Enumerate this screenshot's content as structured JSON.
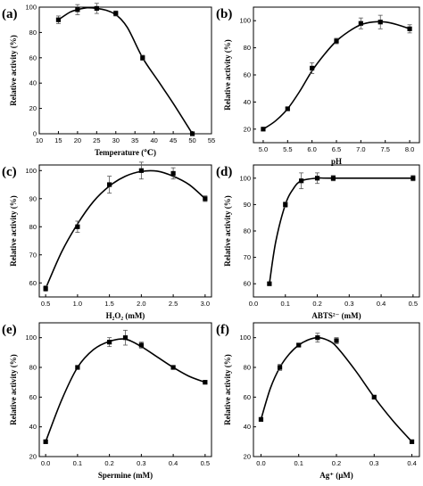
{
  "chart_data": [
    {
      "type": "line",
      "panel_label": "(a)",
      "xlabel": "Temperature (℃)",
      "ylabel": "Relative activity (%)",
      "xlim": [
        10,
        55
      ],
      "ylim": [
        0,
        100
      ],
      "xticks": [
        10,
        15,
        20,
        25,
        30,
        35,
        40,
        45,
        50,
        55
      ],
      "yticks": [
        0,
        20,
        40,
        60,
        80,
        100
      ],
      "x": [
        15,
        20,
        25,
        30,
        37,
        50
      ],
      "y": [
        90,
        98,
        99,
        95,
        60,
        0
      ],
      "err": [
        3,
        4,
        4,
        2,
        2,
        1
      ],
      "curve": [
        [
          15,
          90
        ],
        [
          18,
          96
        ],
        [
          20,
          98
        ],
        [
          22.5,
          99.5
        ],
        [
          25,
          99
        ],
        [
          27.5,
          97.5
        ],
        [
          30,
          94
        ],
        [
          33,
          84
        ],
        [
          37,
          60
        ],
        [
          41,
          42
        ],
        [
          45,
          24
        ],
        [
          50,
          0
        ]
      ]
    },
    {
      "type": "line",
      "panel_label": "(b)",
      "xlabel": "pH",
      "ylabel": "Relative activity (%)",
      "xlim": [
        4.8,
        8.2
      ],
      "ylim": [
        10,
        110
      ],
      "xticks": [
        5.0,
        5.5,
        6.0,
        6.5,
        7.0,
        7.5,
        8.0
      ],
      "yticks": [
        20,
        40,
        60,
        80,
        100
      ],
      "x": [
        5.0,
        5.5,
        6.0,
        6.5,
        7.0,
        7.4,
        8.0
      ],
      "y": [
        20,
        35,
        65,
        85,
        98,
        99,
        94
      ],
      "err": [
        1,
        1,
        4,
        2,
        4,
        5,
        3
      ],
      "curve": [
        [
          5.0,
          20
        ],
        [
          5.25,
          26
        ],
        [
          5.5,
          35
        ],
        [
          5.75,
          48
        ],
        [
          6.0,
          63
        ],
        [
          6.25,
          75
        ],
        [
          6.5,
          85
        ],
        [
          6.75,
          92
        ],
        [
          7.0,
          97
        ],
        [
          7.25,
          99
        ],
        [
          7.5,
          99
        ],
        [
          7.75,
          97
        ],
        [
          8.0,
          94
        ]
      ]
    },
    {
      "type": "line",
      "panel_label": "(c)",
      "xlabel": "H₂O₂ (mM)",
      "ylabel": "Relative activity (%)",
      "xlim": [
        0.4,
        3.1
      ],
      "ylim": [
        55,
        102
      ],
      "xticks": [
        0.5,
        1.0,
        1.5,
        2.0,
        2.5,
        3.0
      ],
      "yticks": [
        60,
        70,
        80,
        90,
        100
      ],
      "x": [
        0.5,
        1.0,
        1.5,
        2.0,
        2.5,
        3.0
      ],
      "y": [
        58,
        80,
        95,
        100,
        99,
        90
      ],
      "err": [
        1,
        2,
        3,
        3,
        2,
        1
      ],
      "curve": [
        [
          0.5,
          58
        ],
        [
          0.75,
          71
        ],
        [
          1.0,
          81
        ],
        [
          1.25,
          89
        ],
        [
          1.5,
          94.5
        ],
        [
          1.75,
          98
        ],
        [
          2.0,
          99.7
        ],
        [
          2.25,
          99.8
        ],
        [
          2.5,
          98
        ],
        [
          2.75,
          95
        ],
        [
          3.0,
          90
        ]
      ]
    },
    {
      "type": "line",
      "panel_label": "(d)",
      "xlabel": "ABTS²⁻ (mM)",
      "ylabel": "Relative activity (%)",
      "xlim": [
        0.0,
        0.52
      ],
      "ylim": [
        55,
        105
      ],
      "xticks": [
        0.0,
        0.1,
        0.2,
        0.3,
        0.4,
        0.5
      ],
      "yticks": [
        60,
        70,
        80,
        90,
        100
      ],
      "x": [
        0.05,
        0.1,
        0.15,
        0.2,
        0.25,
        0.5
      ],
      "y": [
        60,
        90,
        99,
        100,
        100,
        100
      ],
      "err": [
        0.5,
        1,
        3,
        2,
        1,
        1
      ],
      "curve": [
        [
          0.05,
          60
        ],
        [
          0.07,
          76
        ],
        [
          0.1,
          90
        ],
        [
          0.125,
          96
        ],
        [
          0.15,
          99
        ],
        [
          0.2,
          100
        ],
        [
          0.25,
          100
        ],
        [
          0.5,
          100
        ]
      ]
    },
    {
      "type": "line",
      "panel_label": "(e)",
      "xlabel": "Spermine (mM)",
      "ylabel": "Relative activity (%)",
      "xlim": [
        -0.02,
        0.52
      ],
      "ylim": [
        20,
        110
      ],
      "xticks": [
        0.0,
        0.1,
        0.2,
        0.3,
        0.4,
        0.5
      ],
      "yticks": [
        20,
        40,
        60,
        80,
        100
      ],
      "x": [
        0.0,
        0.1,
        0.2,
        0.25,
        0.3,
        0.4,
        0.5
      ],
      "y": [
        30,
        80,
        97,
        100,
        95,
        80,
        70
      ],
      "err": [
        1,
        1,
        3,
        5,
        2,
        1,
        1
      ],
      "curve": [
        [
          0.0,
          30
        ],
        [
          0.05,
          58
        ],
        [
          0.1,
          80
        ],
        [
          0.15,
          92
        ],
        [
          0.2,
          97.5
        ],
        [
          0.25,
          99
        ],
        [
          0.3,
          94
        ],
        [
          0.35,
          87
        ],
        [
          0.4,
          80
        ],
        [
          0.45,
          74
        ],
        [
          0.5,
          70
        ]
      ]
    },
    {
      "type": "line",
      "panel_label": "(f)",
      "xlabel": "Ag⁺ (μM)",
      "ylabel": "Relative activity (%)",
      "xlim": [
        -0.02,
        0.42
      ],
      "ylim": [
        20,
        110
      ],
      "xticks": [
        0.0,
        0.1,
        0.2,
        0.3,
        0.4
      ],
      "yticks": [
        20,
        40,
        60,
        80,
        100
      ],
      "x": [
        0.0,
        0.05,
        0.1,
        0.15,
        0.2,
        0.3,
        0.4
      ],
      "y": [
        45,
        80,
        95,
        100,
        98,
        60,
        30
      ],
      "err": [
        1,
        2,
        1,
        3,
        2,
        1,
        1
      ],
      "curve": [
        [
          0.0,
          45
        ],
        [
          0.025,
          66
        ],
        [
          0.05,
          80
        ],
        [
          0.075,
          89
        ],
        [
          0.1,
          95
        ],
        [
          0.125,
          98.5
        ],
        [
          0.15,
          100
        ],
        [
          0.175,
          98.5
        ],
        [
          0.2,
          94
        ],
        [
          0.25,
          78
        ],
        [
          0.3,
          60
        ],
        [
          0.35,
          44
        ],
        [
          0.4,
          30
        ]
      ]
    }
  ]
}
